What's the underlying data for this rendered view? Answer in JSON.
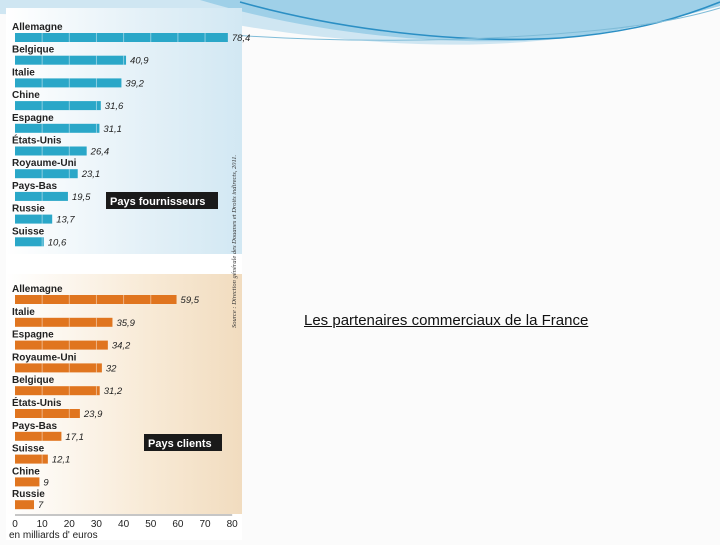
{
  "slide": {
    "caption": "Les partenaires commerciaux de la France"
  },
  "colors": {
    "suppliers_bar": "#2aa7c8",
    "clients_bar": "#e0751f",
    "legend_bg": "#1a1a1a",
    "slide_accent": "#2b8fc4"
  },
  "chart_data": [
    {
      "type": "bar",
      "orientation": "horizontal",
      "legend": "Pays fournisseurs",
      "categories": [
        "Allemagne",
        "Belgique",
        "Italie",
        "Chine",
        "Espagne",
        "États-Unis",
        "Royaume-Uni",
        "Pays-Bas",
        "Russie",
        "Suisse"
      ],
      "values": [
        78.4,
        40.9,
        39.2,
        31.6,
        31.1,
        26.4,
        23.1,
        19.5,
        13.7,
        10.6
      ],
      "value_labels": [
        "78,4",
        "40,9",
        "39,2",
        "31,6",
        "31,1",
        "26,4",
        "23,1",
        "19,5",
        "13,7",
        "10,6"
      ],
      "xlim": [
        0,
        80
      ]
    },
    {
      "type": "bar",
      "orientation": "horizontal",
      "legend": "Pays clients",
      "categories": [
        "Allemagne",
        "Italie",
        "Espagne",
        "Royaume-Uni",
        "Belgique",
        "États-Unis",
        "Pays-Bas",
        "Suisse",
        "Chine",
        "Russie"
      ],
      "values": [
        59.5,
        35.9,
        34.2,
        32,
        31.2,
        23.9,
        17.1,
        12.1,
        9,
        7
      ],
      "value_labels": [
        "59,5",
        "35,9",
        "34,2",
        "32",
        "31,2",
        "23,9",
        "17,1",
        "12,1",
        "9",
        "7"
      ],
      "xlim": [
        0,
        80
      ],
      "xticks": [
        "0",
        "10",
        "20",
        "30",
        "40",
        "50",
        "60",
        "70",
        "80"
      ],
      "xlabel": "en milliards d' euros",
      "source": "Source : Direction générale des Douanes et Droits indirects, 2011."
    }
  ]
}
